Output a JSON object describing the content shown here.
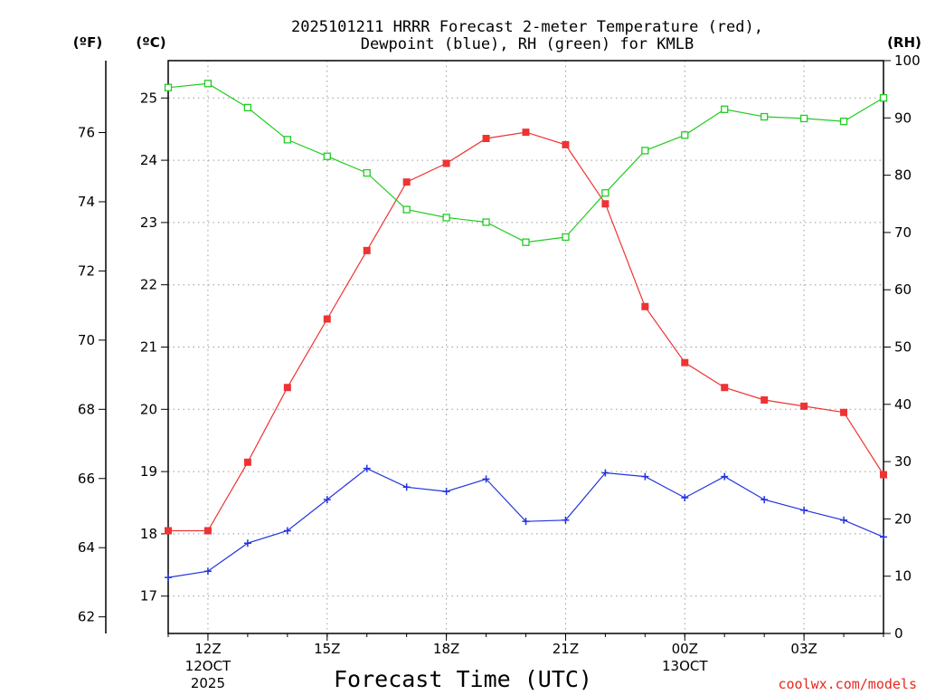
{
  "chart_data": {
    "type": "line",
    "title_line1": "2025101211 HRRR Forecast 2-meter Temperature (red),",
    "title_line2": "Dewpoint (blue), RH (green) for KMLB",
    "xlabel": "Forecast Time (UTC)",
    "credit": "coolwx.com/models",
    "unit_labels": {
      "fahrenheit": "(ºF)",
      "celsius": "(ºC)",
      "rh": "(RH)"
    },
    "x_hours": [
      11,
      12,
      13,
      14,
      15,
      16,
      17,
      18,
      19,
      20,
      21,
      22,
      23,
      24,
      25,
      26,
      27,
      28,
      29
    ],
    "x_range": [
      11,
      29
    ],
    "x_ticks": [
      {
        "hour": 12,
        "lines": [
          "12Z",
          "12OCT",
          "2025"
        ]
      },
      {
        "hour": 15,
        "lines": [
          "15Z"
        ]
      },
      {
        "hour": 18,
        "lines": [
          "18Z"
        ]
      },
      {
        "hour": 21,
        "lines": [
          "21Z"
        ]
      },
      {
        "hour": 24,
        "lines": [
          "00Z",
          "13OCT"
        ]
      },
      {
        "hour": 27,
        "lines": [
          "03Z"
        ]
      }
    ],
    "celsius_axis": {
      "range": [
        16.4,
        25.6
      ],
      "ticks": [
        17,
        18,
        19,
        20,
        21,
        22,
        23,
        24,
        25
      ]
    },
    "fahrenheit_axis": {
      "range": [
        61.52,
        78.08
      ],
      "ticks": [
        62,
        64,
        66,
        68,
        70,
        72,
        74,
        76
      ]
    },
    "rh_axis": {
      "range": [
        0,
        100
      ],
      "ticks": [
        0,
        10,
        20,
        30,
        40,
        50,
        60,
        70,
        80,
        90,
        100
      ]
    },
    "series": [
      {
        "name": "Temperature",
        "axis": "celsius",
        "color": "#ee3333",
        "marker": "filled-square",
        "values": [
          18.05,
          18.05,
          19.15,
          20.35,
          21.45,
          22.55,
          23.65,
          23.95,
          24.35,
          24.45,
          24.25,
          23.3,
          21.65,
          20.75,
          20.35,
          20.15,
          20.05,
          19.95,
          18.95
        ]
      },
      {
        "name": "Dewpoint",
        "axis": "celsius",
        "color": "#2233dd",
        "marker": "plus",
        "values": [
          17.3,
          17.4,
          17.85,
          18.05,
          18.55,
          19.05,
          18.75,
          18.68,
          18.88,
          18.2,
          18.22,
          18.98,
          18.92,
          18.58,
          18.92,
          18.55,
          18.38,
          18.22,
          17.95
        ]
      },
      {
        "name": "RH",
        "axis": "rh",
        "color": "#22cc22",
        "marker": "open-square",
        "values": [
          95.3,
          96.0,
          91.8,
          86.2,
          83.3,
          80.4,
          74.0,
          72.6,
          71.8,
          68.3,
          69.2,
          76.9,
          84.3,
          87.0,
          91.5,
          90.2,
          89.9,
          89.4,
          93.5
        ]
      }
    ]
  }
}
